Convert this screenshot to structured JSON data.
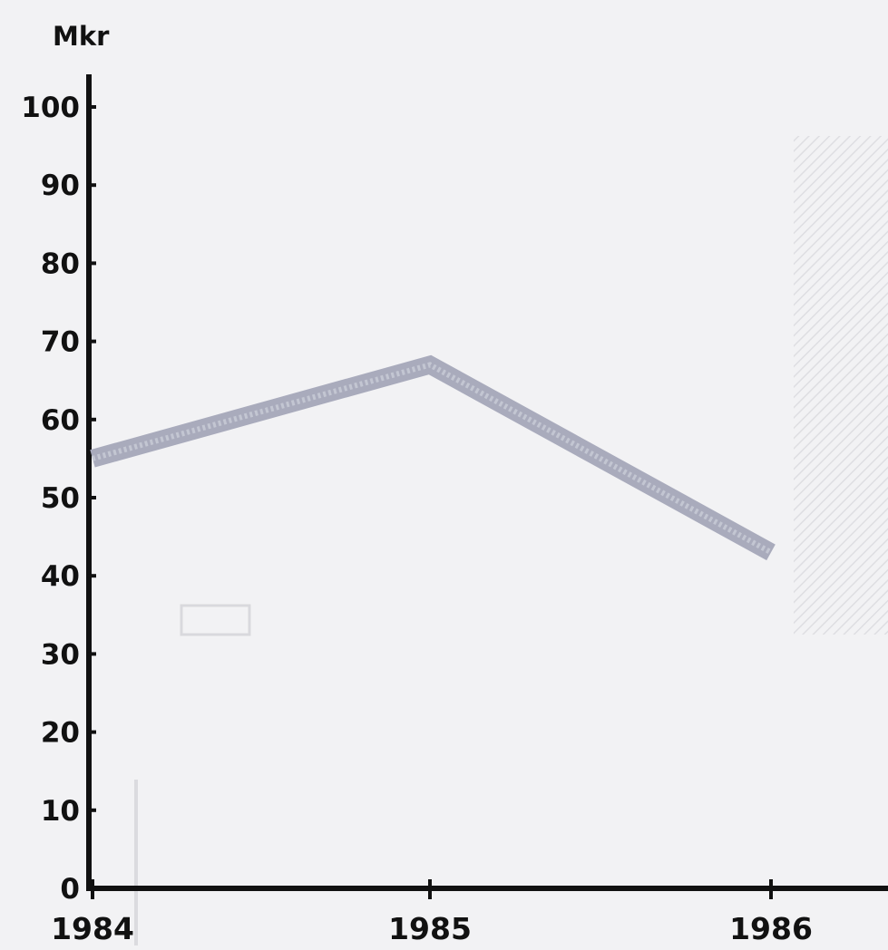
{
  "chart_data": {
    "type": "line",
    "title": "",
    "ylabel": "Mkr",
    "xlabel": "",
    "categories": [
      "1984",
      "1985",
      "1986"
    ],
    "series": [
      {
        "values": [
          55,
          67,
          43
        ]
      }
    ],
    "ylim": [
      0,
      100
    ],
    "yticks": [
      0,
      10,
      20,
      30,
      40,
      50,
      60,
      70,
      80,
      90,
      100
    ],
    "grid": false,
    "legend": "none"
  },
  "colors": {
    "background": "#f2f2f4",
    "axis": "#111111",
    "line": "#a9abbc",
    "bleed_through": "#cfcfd4"
  }
}
